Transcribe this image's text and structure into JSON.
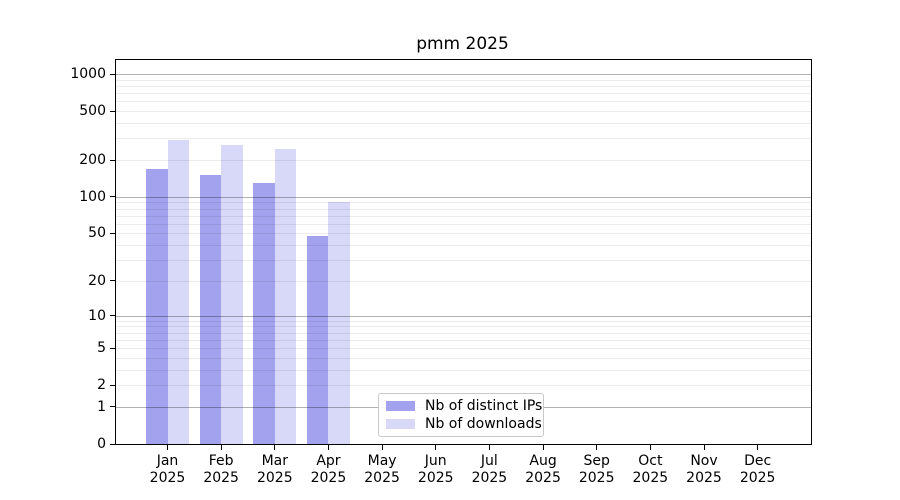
{
  "chart_data": {
    "type": "bar",
    "title": "pmm 2025",
    "categories": [
      "Jan",
      "Feb",
      "Mar",
      "Apr",
      "May",
      "Jun",
      "Jul",
      "Aug",
      "Sep",
      "Oct",
      "Nov",
      "Dec"
    ],
    "x_tick_year_line": "2025",
    "series": [
      {
        "name": "Nb of distinct IPs",
        "color": "#a2a2ef",
        "values": [
          170,
          150,
          130,
          48,
          null,
          null,
          null,
          null,
          null,
          null,
          null,
          null
        ]
      },
      {
        "name": "Nb of downloads",
        "color": "#d8d8f8",
        "values": [
          290,
          265,
          245,
          90,
          null,
          null,
          null,
          null,
          null,
          null,
          null,
          null
        ]
      }
    ],
    "y_ticks": [
      0,
      1,
      2,
      5,
      10,
      20,
      50,
      100,
      200,
      500,
      1000
    ],
    "ylim": [
      0,
      1300
    ],
    "yscale": "log1p",
    "grid": "horizontal major (decades) + minor, drawn over bars",
    "legend_position": "inside lower-center",
    "colors": {
      "axis": "#000000",
      "grid_major": "rgba(0,0,0,0.30)",
      "grid_minor": "rgba(0,0,0,0.08)",
      "background": "#ffffff"
    }
  }
}
